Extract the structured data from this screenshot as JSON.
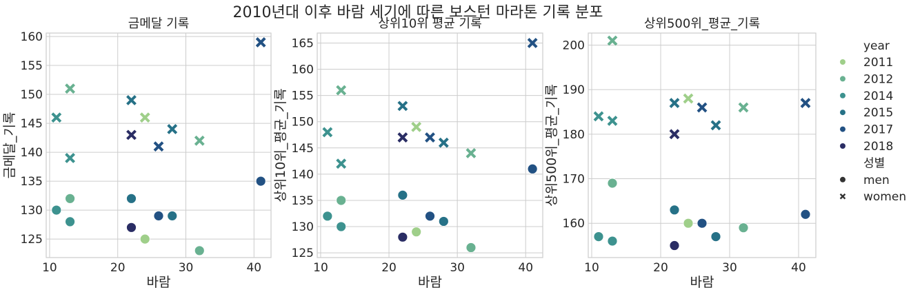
{
  "suptitle": "2010년대 이후 바람 세기에 따른 보스턴 마라톤 기록 분포",
  "legend": {
    "hue_title": "year",
    "years": [
      "2011",
      "2012",
      "2014",
      "2015",
      "2017",
      "2018"
    ],
    "style_title": "성별",
    "styles": [
      "men",
      "women"
    ]
  },
  "colors": {
    "2011": "#9fcf8a",
    "2012": "#69b191",
    "2014": "#3d928f",
    "2015": "#267187",
    "2017": "#225183",
    "2018": "#2a2d64"
  },
  "chart_data": [
    {
      "type": "scatter",
      "title": "금메달 기록",
      "xlabel": "바람",
      "ylabel": "금메달_기록",
      "xlim": [
        9.5,
        42.5
      ],
      "ylim": [
        121.8,
        160.6
      ],
      "xticks": [
        10,
        20,
        30,
        40
      ],
      "yticks": [
        125,
        130,
        135,
        140,
        145,
        150,
        155,
        160
      ],
      "grid": true,
      "points": [
        {
          "year": "2011",
          "gender": "men",
          "x": 24,
          "y": 125
        },
        {
          "year": "2011",
          "gender": "women",
          "x": 24,
          "y": 146
        },
        {
          "year": "2012",
          "gender": "men",
          "x": 32,
          "y": 123
        },
        {
          "year": "2012",
          "gender": "women",
          "x": 32,
          "y": 142
        },
        {
          "year": "2012",
          "gender": "men",
          "x": 13,
          "y": 132
        },
        {
          "year": "2012",
          "gender": "women",
          "x": 13,
          "y": 151
        },
        {
          "year": "2014",
          "gender": "men",
          "x": 11,
          "y": 130
        },
        {
          "year": "2014",
          "gender": "women",
          "x": 11,
          "y": 146
        },
        {
          "year": "2014",
          "gender": "men",
          "x": 13,
          "y": 128
        },
        {
          "year": "2014",
          "gender": "women",
          "x": 13,
          "y": 139
        },
        {
          "year": "2015",
          "gender": "men",
          "x": 28,
          "y": 129
        },
        {
          "year": "2015",
          "gender": "women",
          "x": 28,
          "y": 144
        },
        {
          "year": "2015",
          "gender": "men",
          "x": 22,
          "y": 132
        },
        {
          "year": "2015",
          "gender": "women",
          "x": 22,
          "y": 149
        },
        {
          "year": "2017",
          "gender": "men",
          "x": 26,
          "y": 129
        },
        {
          "year": "2017",
          "gender": "women",
          "x": 26,
          "y": 141
        },
        {
          "year": "2017",
          "gender": "men",
          "x": 41,
          "y": 135
        },
        {
          "year": "2017",
          "gender": "women",
          "x": 41,
          "y": 159
        },
        {
          "year": "2018",
          "gender": "men",
          "x": 22,
          "y": 127
        },
        {
          "year": "2018",
          "gender": "women",
          "x": 22,
          "y": 143
        }
      ]
    },
    {
      "type": "scatter",
      "title": "상위10위 평균 기록",
      "xlabel": "바람",
      "ylabel": "상위10위_평균_기록",
      "xlim": [
        9.5,
        42.5
      ],
      "ylim": [
        124.1,
        166.9
      ],
      "xticks": [
        10,
        20,
        30,
        40
      ],
      "yticks": [
        125,
        130,
        135,
        140,
        145,
        150,
        155,
        160,
        165
      ],
      "grid": true,
      "points": [
        {
          "year": "2011",
          "gender": "men",
          "x": 24,
          "y": 129
        },
        {
          "year": "2011",
          "gender": "women",
          "x": 24,
          "y": 149
        },
        {
          "year": "2012",
          "gender": "men",
          "x": 32,
          "y": 126
        },
        {
          "year": "2012",
          "gender": "women",
          "x": 32,
          "y": 144
        },
        {
          "year": "2012",
          "gender": "men",
          "x": 13,
          "y": 135
        },
        {
          "year": "2012",
          "gender": "women",
          "x": 13,
          "y": 156
        },
        {
          "year": "2014",
          "gender": "men",
          "x": 11,
          "y": 132
        },
        {
          "year": "2014",
          "gender": "women",
          "x": 11,
          "y": 148
        },
        {
          "year": "2014",
          "gender": "men",
          "x": 13,
          "y": 130
        },
        {
          "year": "2014",
          "gender": "women",
          "x": 13,
          "y": 142
        },
        {
          "year": "2015",
          "gender": "men",
          "x": 28,
          "y": 131
        },
        {
          "year": "2015",
          "gender": "women",
          "x": 28,
          "y": 146
        },
        {
          "year": "2015",
          "gender": "men",
          "x": 22,
          "y": 136
        },
        {
          "year": "2015",
          "gender": "women",
          "x": 22,
          "y": 153
        },
        {
          "year": "2017",
          "gender": "men",
          "x": 26,
          "y": 132
        },
        {
          "year": "2017",
          "gender": "women",
          "x": 26,
          "y": 147
        },
        {
          "year": "2017",
          "gender": "men",
          "x": 41,
          "y": 141
        },
        {
          "year": "2017",
          "gender": "women",
          "x": 41,
          "y": 165
        },
        {
          "year": "2018",
          "gender": "men",
          "x": 22,
          "y": 128
        },
        {
          "year": "2018",
          "gender": "women",
          "x": 22,
          "y": 147
        }
      ]
    },
    {
      "type": "scatter",
      "title": "상위500위_평균_기록",
      "xlabel": "바람",
      "ylabel": "상위500위_평균_기록",
      "xlim": [
        9.5,
        42.5
      ],
      "ylim": [
        152.3,
        202.7
      ],
      "xticks": [
        10,
        20,
        30,
        40
      ],
      "yticks": [
        160,
        170,
        180,
        190,
        200
      ],
      "grid": true,
      "points": [
        {
          "year": "2011",
          "gender": "men",
          "x": 24,
          "y": 160
        },
        {
          "year": "2011",
          "gender": "women",
          "x": 24,
          "y": 188
        },
        {
          "year": "2012",
          "gender": "men",
          "x": 32,
          "y": 159
        },
        {
          "year": "2012",
          "gender": "women",
          "x": 32,
          "y": 186
        },
        {
          "year": "2012",
          "gender": "men",
          "x": 13,
          "y": 169
        },
        {
          "year": "2012",
          "gender": "women",
          "x": 13,
          "y": 201
        },
        {
          "year": "2014",
          "gender": "men",
          "x": 11,
          "y": 157
        },
        {
          "year": "2014",
          "gender": "women",
          "x": 11,
          "y": 184
        },
        {
          "year": "2014",
          "gender": "men",
          "x": 13,
          "y": 156
        },
        {
          "year": "2014",
          "gender": "women",
          "x": 13,
          "y": 183
        },
        {
          "year": "2015",
          "gender": "men",
          "x": 28,
          "y": 157
        },
        {
          "year": "2015",
          "gender": "women",
          "x": 28,
          "y": 182
        },
        {
          "year": "2015",
          "gender": "men",
          "x": 22,
          "y": 163
        },
        {
          "year": "2015",
          "gender": "women",
          "x": 22,
          "y": 187
        },
        {
          "year": "2017",
          "gender": "men",
          "x": 26,
          "y": 160
        },
        {
          "year": "2017",
          "gender": "women",
          "x": 26,
          "y": 186
        },
        {
          "year": "2017",
          "gender": "men",
          "x": 41,
          "y": 162
        },
        {
          "year": "2017",
          "gender": "women",
          "x": 41,
          "y": 187
        },
        {
          "year": "2018",
          "gender": "men",
          "x": 22,
          "y": 155
        },
        {
          "year": "2018",
          "gender": "women",
          "x": 22,
          "y": 180
        }
      ]
    }
  ]
}
